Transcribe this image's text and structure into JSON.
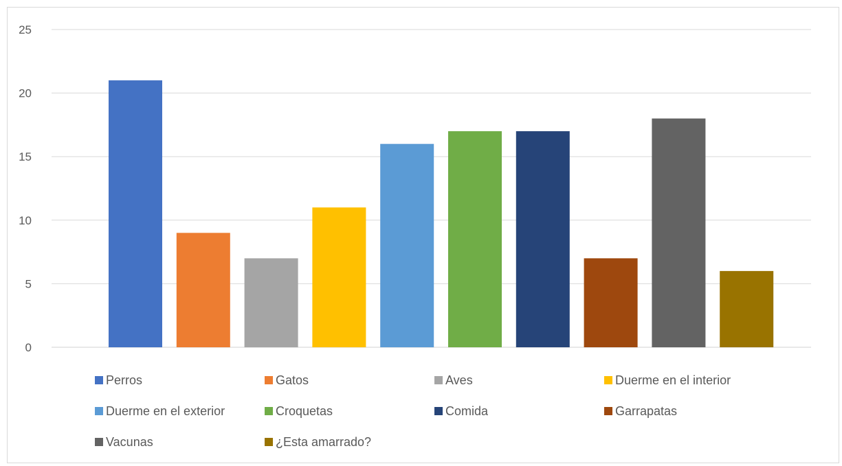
{
  "chart_data": {
    "type": "bar",
    "categories": [
      "Perros",
      "Gatos",
      "Aves",
      "Duerme en el interior",
      "Duerme en el exterior",
      "Croquetas",
      "Comida",
      "Garrapatas",
      "Vacunas",
      "¿Esta amarrado?"
    ],
    "values": [
      21,
      9,
      7,
      11,
      16,
      17,
      17,
      7,
      18,
      6
    ],
    "colors": [
      "#4472C4",
      "#ED7D31",
      "#A5A5A5",
      "#FFC000",
      "#5B9BD5",
      "#70AD47",
      "#264478",
      "#9E480E",
      "#636363",
      "#997300"
    ],
    "ylim": [
      0,
      25
    ],
    "yticks": [
      "0",
      "5",
      "10",
      "15",
      "20",
      "25"
    ],
    "grid": true,
    "legend_position": "bottom"
  }
}
